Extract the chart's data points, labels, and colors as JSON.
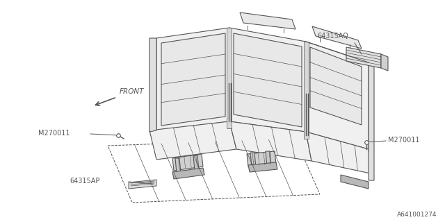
{
  "bg_color": "#ffffff",
  "line_color": "#555555",
  "fig_width": 6.4,
  "fig_height": 3.2,
  "dpi": 100,
  "watermark": "A641001274",
  "labels": {
    "front": "FRONT",
    "part1": "64315AQ",
    "part2": "M270011",
    "part3": "M270011",
    "part4": "64315AP"
  }
}
